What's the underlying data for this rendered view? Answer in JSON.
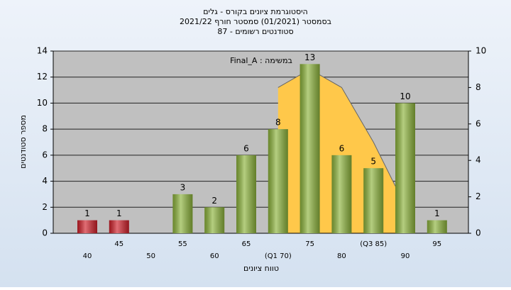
{
  "chart_data": {
    "type": "bar",
    "title": "היסטוגרמת ציונים בקורס - גלים",
    "subtitle": "בסמסטר  (01/2021)  סמסטר חורף 2021/22",
    "subtitle2": "סטודנטים רשומים - 87",
    "annotation": "במשימה : Final_A",
    "x_label": "טווח ציונים",
    "y_label": "מספר סטודנטים",
    "categories": [
      "40",
      "45",
      "50",
      "55",
      "60",
      "65",
      "(Q1 70)",
      "75",
      "80",
      "(Q3 85)",
      "90",
      "95"
    ],
    "values": [
      1,
      1,
      0,
      3,
      2,
      6,
      8,
      13,
      6,
      5,
      10,
      1
    ],
    "colors": [
      "#d0202a",
      "#d0202a",
      "#8db43c",
      "#8db43c",
      "#8db43c",
      "#8db43c",
      "#8db43c",
      "#8db43c",
      "#8db43c",
      "#8db43c",
      "#8db43c",
      "#8db43c"
    ],
    "curve": {
      "axis": "y2",
      "color": "#ffc84a",
      "values": [
        null,
        null,
        null,
        null,
        null,
        null,
        8,
        9,
        8,
        5,
        1.5,
        null
      ]
    },
    "ylim": [
      0,
      14
    ],
    "yticks": [
      0,
      2,
      4,
      6,
      8,
      10,
      12,
      14
    ],
    "y2lim": [
      0,
      10
    ],
    "y2ticks": [
      0,
      2,
      4,
      6,
      8,
      10
    ],
    "grid": true
  }
}
